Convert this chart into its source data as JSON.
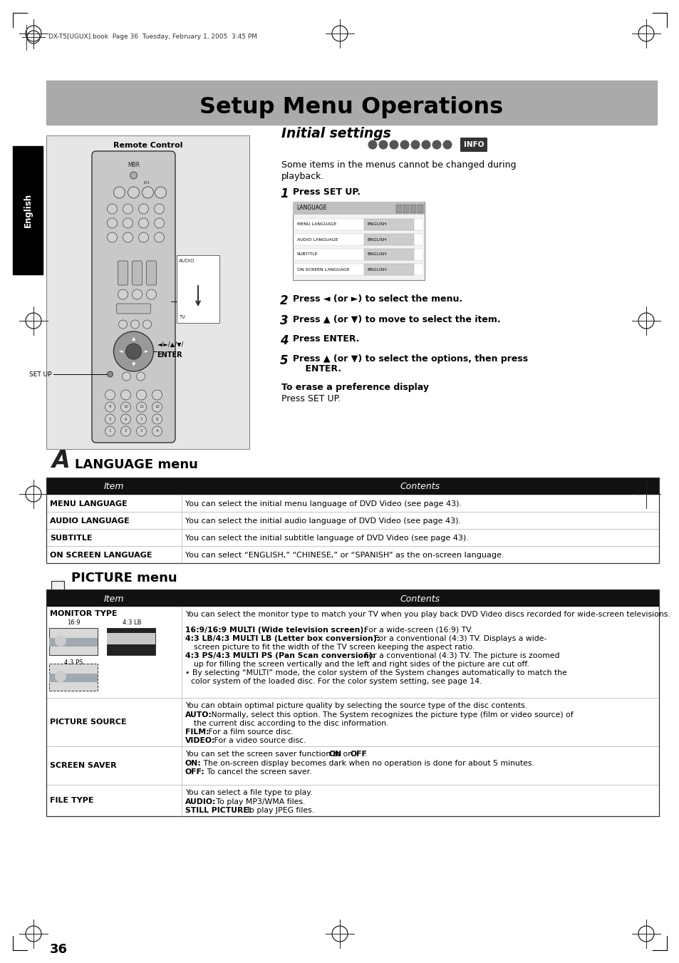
{
  "page_bg": "#ffffff",
  "title_text": "Setup Menu Operations",
  "title_bg": "#b0b0b0",
  "header_meta": "DX-T5[UGUX].book  Page 36  Tuesday, February 1, 2005  3:45 PM",
  "initial_settings_title": "Initial settings",
  "info_badge": "INFO",
  "initial_desc1": "Some items in the menus cannot be changed during",
  "initial_desc2": "playback.",
  "steps": [
    {
      "num": "1",
      "text": "Press SET UP."
    },
    {
      "num": "2",
      "text": "Press ◄ (or ►) to select the menu."
    },
    {
      "num": "3",
      "text": "Press ▲ (or ▼) to move to select the item."
    },
    {
      "num": "4",
      "text": "Press ENTER."
    },
    {
      "num": "5",
      "text": "Press ▲ (or ▼) to select the options, then press"
    }
  ],
  "step5_cont": "    ENTER.",
  "erase_title": "To erase a preference display",
  "erase_text": "Press SET UP.",
  "language_menu_title": "LANGUAGE menu",
  "lang_table_header": [
    "Item",
    "Contents"
  ],
  "lang_table_rows": [
    [
      "MENU LANGUAGE",
      "You can select the initial menu language of DVD Video (see page 43)."
    ],
    [
      "AUDIO LANGUAGE",
      "You can select the initial audio language of DVD Video (see page 43)."
    ],
    [
      "SUBTITLE",
      "You can select the initial subtitle language of DVD Video (see page 43)."
    ],
    [
      "ON SCREEN LANGUAGE",
      "You can select “ENGLISH,” “CHINESE,” or “SPANISH” as the on-screen language."
    ]
  ],
  "picture_menu_title": "PICTURE menu",
  "pic_table_header": [
    "Item",
    "Contents"
  ],
  "pic_row0_item": "MONITOR TYPE",
  "pic_row0_label1": "16:9",
  "pic_row0_label2": "4:3 LB",
  "pic_row0_label3": "4:3 PS",
  "pic_row0_content": [
    {
      "bold": false,
      "text": "You can select the monitor type to match your TV when you play back DVD Video discs recorded for wide-screen televisions."
    },
    {
      "bold": true,
      "text": "16:9/16:9 MULTI (Wide television screen):"
    },
    {
      "bold": false,
      "text": " For a wide-screen (16:9) TV."
    },
    {
      "bold": true,
      "text": "4:3 LB/4:3 MULTI LB (Letter box conversion):"
    },
    {
      "bold": false,
      "text": " For a conventional (4:3) TV. Displays a wide-screen picture to fit the width of the TV screen keeping the aspect ratio."
    },
    {
      "bold": true,
      "text": "4:3 PS/4:3 MULTI PS (Pan Scan conversion):"
    },
    {
      "bold": false,
      "text": " For a conventional (4:3) TV. The picture is zoomed up for filling the screen vertically and the left and right sides of the picture are cut off."
    },
    {
      "bold": false,
      "text": "• By selecting “MULTI” mode, the color system of the System changes automatically to match the color system of the loaded disc. For the color system setting, see page 14."
    }
  ],
  "pic_row1_item": "PICTURE SOURCE",
  "pic_row1_lines": [
    "You can obtain optimal picture quality by selecting the source type of the disc contents.",
    "AUTO:",
    " Normally, select this option. The System recognizes the picture type (film or video source) of",
    "    the current disc according to the disc information.",
    "FILM:",
    " For a film source disc.",
    "VIDEO:",
    " For a video source disc."
  ],
  "pic_row2_item": "SCREEN SAVER",
  "pic_row2_lines": [
    "You can set the screen saver function to ",
    "ON",
    " or ",
    "OFF",
    ".",
    "ON:",
    " The on-screen display becomes dark when no operation is done for about 5 minutes.",
    "OFF:",
    " To cancel the screen saver."
  ],
  "pic_row3_item": "FILE TYPE",
  "pic_row3_lines": [
    "You can select a file type to play.",
    "AUDIO:",
    " To play MP3/WMA files.",
    "STILL PICTURE:",
    " To play JPEG files."
  ],
  "page_number": "36",
  "remote_control_label": "Remote Control"
}
